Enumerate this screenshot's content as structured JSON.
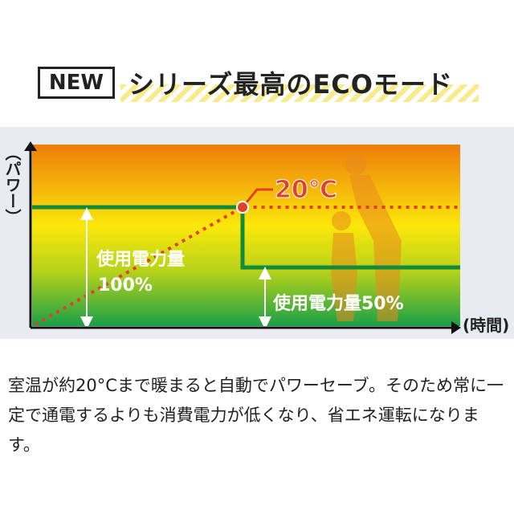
{
  "header": {
    "badge": "NEW",
    "title": "シリーズ最高のECOモード"
  },
  "diagram": {
    "y_axis_label": "（パワー）",
    "x_axis_label": "(時間)",
    "temperature_marker": "20℃",
    "label_full_line1": "使用電力量",
    "label_full_line2": "100%",
    "label_half": "使用電力量50%",
    "colors": {
      "top": "#ee7d0a",
      "middle": "#fbe80a",
      "bottom": "#1aa048",
      "power_line": "#138a3a",
      "temperature_line": "#e3402a"
    }
  },
  "description": "室温が約20°Cまで暖まると自動でパワーセーブ。そのため常に一定で通電するよりも消費電力が低くなり、省エネ運転になります。"
}
